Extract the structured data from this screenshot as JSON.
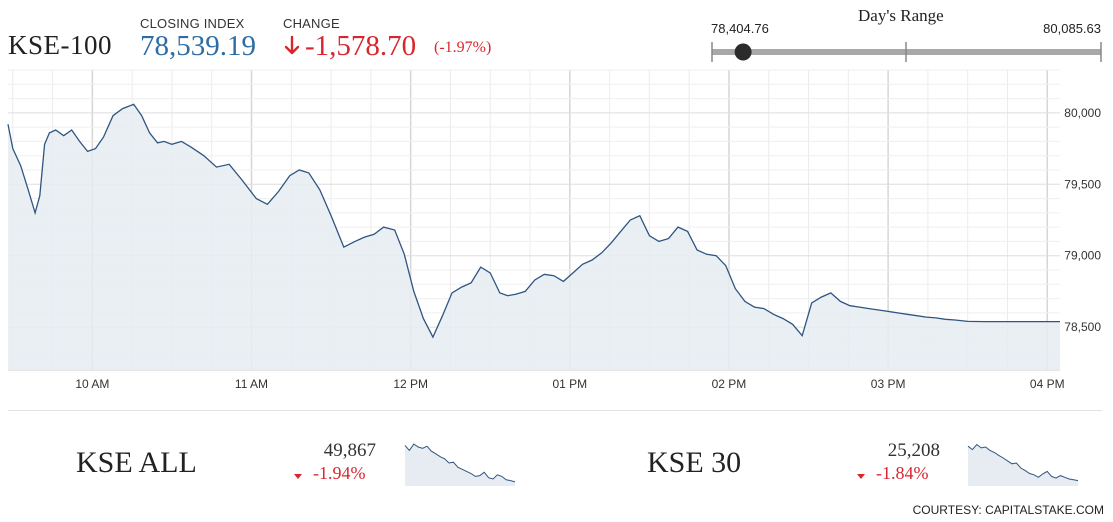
{
  "header": {
    "index_name": "KSE-100",
    "closing_label": "CLOSING INDEX",
    "closing_value": "78,539.19",
    "change_label": "CHANGE",
    "change_value": "-1,578.70",
    "change_pct": "(-1.97%)",
    "change_arrow_icon": "arrow-down-icon",
    "days_range": {
      "title": "Day's Range",
      "low_label": "78,404.76",
      "high_label": "80,085.63",
      "low": 78404.76,
      "high": 80085.63,
      "current": 78539.19
    }
  },
  "colors": {
    "line": "#2f5580",
    "area": "#e6ecf2",
    "up_blue": "#2e6da4",
    "down_red": "#d9262e"
  },
  "chart_data": {
    "type": "area",
    "ylim": [
      78200,
      80300
    ],
    "yticks": [
      80000,
      79500,
      79000,
      78500
    ],
    "ytick_labels": [
      "80,000",
      "79,500",
      "79,000",
      "78,500"
    ],
    "xlim": [
      9.47,
      16.08
    ],
    "xticks": [
      10,
      11,
      12,
      13,
      14,
      15,
      16
    ],
    "xtick_labels": [
      "10 AM",
      "11 AM",
      "12 PM",
      "01 PM",
      "02 PM",
      "03 PM",
      "04 PM"
    ],
    "grid": true,
    "x": [
      9.47,
      9.5,
      9.55,
      9.6,
      9.64,
      9.67,
      9.7,
      9.73,
      9.77,
      9.82,
      9.87,
      9.92,
      9.97,
      10.02,
      10.07,
      10.13,
      10.19,
      10.26,
      10.31,
      10.36,
      10.41,
      10.45,
      10.5,
      10.56,
      10.62,
      10.7,
      10.78,
      10.86,
      10.94,
      11.03,
      11.1,
      11.17,
      11.24,
      11.3,
      11.36,
      11.43,
      11.5,
      11.58,
      11.65,
      11.71,
      11.77,
      11.83,
      11.9,
      11.96,
      12.02,
      12.08,
      12.14,
      12.2,
      12.26,
      12.32,
      12.38,
      12.44,
      12.5,
      12.56,
      12.61,
      12.66,
      12.72,
      12.78,
      12.84,
      12.9,
      12.96,
      13.02,
      13.08,
      13.14,
      13.2,
      13.26,
      13.32,
      13.38,
      13.44,
      13.5,
      13.56,
      13.62,
      13.68,
      13.74,
      13.8,
      13.86,
      13.92,
      13.98,
      14.04,
      14.1,
      14.16,
      14.22,
      14.28,
      14.34,
      14.4,
      14.46,
      14.52,
      14.58,
      14.64,
      14.7,
      14.76,
      14.82,
      14.88,
      14.94,
      15.0,
      15.06,
      15.12,
      15.18,
      15.24,
      15.3,
      15.36,
      15.42,
      15.5,
      15.6,
      15.7,
      15.8,
      15.9,
      16.0,
      16.08
    ],
    "values": [
      79920,
      79750,
      79630,
      79450,
      79300,
      79420,
      79780,
      79860,
      79880,
      79840,
      79880,
      79800,
      79730,
      79750,
      79830,
      79980,
      80030,
      80060,
      79980,
      79860,
      79790,
      79800,
      79780,
      79800,
      79760,
      79700,
      79620,
      79640,
      79530,
      79400,
      79360,
      79450,
      79560,
      79600,
      79580,
      79460,
      79280,
      79060,
      79100,
      79130,
      79150,
      79200,
      79180,
      79010,
      78750,
      78560,
      78430,
      78580,
      78740,
      78780,
      78810,
      78920,
      78880,
      78740,
      78720,
      78730,
      78750,
      78830,
      78870,
      78860,
      78820,
      78880,
      78940,
      78970,
      79020,
      79090,
      79170,
      79250,
      79280,
      79140,
      79100,
      79120,
      79200,
      79170,
      79040,
      79010,
      79000,
      78930,
      78770,
      78680,
      78640,
      78630,
      78590,
      78560,
      78520,
      78440,
      78670,
      78710,
      78740,
      78680,
      78650,
      78640,
      78630,
      78620,
      78610,
      78600,
      78590,
      78580,
      78570,
      78565,
      78555,
      78550,
      78540,
      78539,
      78539,
      78539,
      78539,
      78539,
      78539
    ]
  },
  "mini_indices": [
    {
      "name": "KSE ALL",
      "value": "49,867",
      "change": "-1.94%",
      "spark": [
        0.92,
        0.8,
        0.95,
        0.88,
        0.85,
        0.9,
        0.78,
        0.72,
        0.65,
        0.6,
        0.5,
        0.52,
        0.4,
        0.35,
        0.3,
        0.25,
        0.18,
        0.2,
        0.28,
        0.15,
        0.12,
        0.22,
        0.18,
        0.1,
        0.08,
        0.05
      ]
    },
    {
      "name": "KSE 30",
      "value": "25,208",
      "change": "-1.84%",
      "spark": [
        0.9,
        0.82,
        0.94,
        0.86,
        0.88,
        0.8,
        0.75,
        0.68,
        0.62,
        0.55,
        0.48,
        0.5,
        0.38,
        0.32,
        0.25,
        0.22,
        0.16,
        0.24,
        0.3,
        0.18,
        0.14,
        0.2,
        0.16,
        0.12,
        0.1,
        0.08
      ]
    }
  ],
  "credit": "COURTESY: CAPITALSTAKE.COM"
}
